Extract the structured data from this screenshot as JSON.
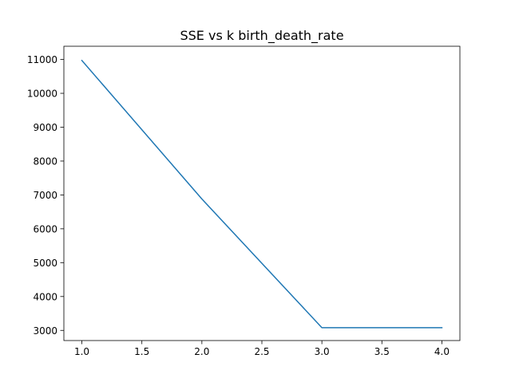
{
  "chart_data": {
    "type": "line",
    "title": "SSE vs k birth_death_rate",
    "xlabel": "",
    "ylabel": "",
    "xlim": [
      0.85,
      4.15
    ],
    "ylim": [
      2700,
      11390
    ],
    "x_ticks": [
      1.0,
      1.5,
      2.0,
      2.5,
      3.0,
      3.5,
      4.0
    ],
    "x_tick_labels": [
      "1.0",
      "1.5",
      "2.0",
      "2.5",
      "3.0",
      "3.5",
      "4.0"
    ],
    "y_ticks": [
      3000,
      4000,
      5000,
      6000,
      7000,
      8000,
      9000,
      10000,
      11000
    ],
    "y_tick_labels": [
      "3000",
      "4000",
      "5000",
      "6000",
      "7000",
      "8000",
      "9000",
      "10000",
      "11000"
    ],
    "grid": false,
    "legend": false,
    "series": [
      {
        "x": [
          1,
          2,
          3,
          4
        ],
        "values": [
          10970,
          6880,
          3080,
          3080
        ],
        "color": "#1f77b4"
      }
    ]
  }
}
